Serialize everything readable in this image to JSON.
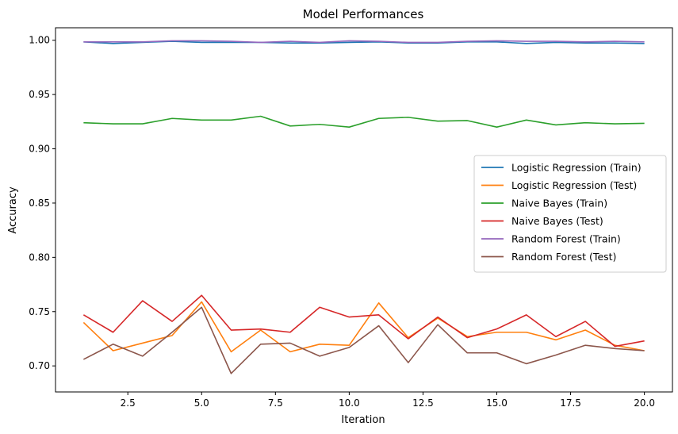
{
  "chart_data": {
    "type": "line",
    "title": "Model Performances",
    "xlabel": "Iteration",
    "ylabel": "Accuracy",
    "xlim": [
      0.05,
      20.95
    ],
    "ylim": [
      0.676,
      1.0115
    ],
    "xticks": [
      2.5,
      5.0,
      7.5,
      10.0,
      12.5,
      15.0,
      17.5,
      20.0
    ],
    "xtick_labels": [
      "2.5",
      "5.0",
      "7.5",
      "10.0",
      "12.5",
      "15.0",
      "17.5",
      "20.0"
    ],
    "yticks": [
      0.7,
      0.75,
      0.8,
      0.85,
      0.9,
      0.95,
      1.0
    ],
    "ytick_labels": [
      "0.70",
      "0.75",
      "0.80",
      "0.85",
      "0.90",
      "0.95",
      "1.00"
    ],
    "grid": false,
    "legend_position": "center-right",
    "x": [
      1,
      2,
      3,
      4,
      5,
      6,
      7,
      8,
      9,
      10,
      11,
      12,
      13,
      14,
      15,
      16,
      17,
      18,
      19,
      20
    ],
    "series": [
      {
        "name": "Logistic Regression (Train)",
        "color": "#1f77b4",
        "values": [
          0.9985,
          0.997,
          0.998,
          0.999,
          0.998,
          0.998,
          0.998,
          0.9975,
          0.9975,
          0.998,
          0.9985,
          0.9975,
          0.9975,
          0.9985,
          0.9985,
          0.997,
          0.998,
          0.9975,
          0.9975,
          0.997
        ]
      },
      {
        "name": "Logistic Regression (Test)",
        "color": "#ff7f0e",
        "values": [
          0.74,
          0.714,
          0.721,
          0.728,
          0.759,
          0.713,
          0.733,
          0.713,
          0.72,
          0.719,
          0.758,
          0.726,
          0.744,
          0.727,
          0.731,
          0.731,
          0.724,
          0.733,
          0.719,
          0.714
        ]
      },
      {
        "name": "Naive Bayes (Train)",
        "color": "#2ca02c",
        "values": [
          0.924,
          0.923,
          0.923,
          0.928,
          0.9265,
          0.9265,
          0.93,
          0.921,
          0.9225,
          0.92,
          0.928,
          0.929,
          0.9255,
          0.926,
          0.92,
          0.9265,
          0.922,
          0.924,
          0.923,
          0.9235
        ]
      },
      {
        "name": "Naive Bayes (Test)",
        "color": "#d62728",
        "values": [
          0.747,
          0.731,
          0.76,
          0.741,
          0.765,
          0.733,
          0.734,
          0.731,
          0.754,
          0.745,
          0.747,
          0.725,
          0.745,
          0.726,
          0.734,
          0.747,
          0.727,
          0.741,
          0.718,
          0.723
        ]
      },
      {
        "name": "Random Forest (Train)",
        "color": "#9467bd",
        "values": [
          0.9985,
          0.9985,
          0.9985,
          0.9995,
          0.9995,
          0.999,
          0.998,
          0.999,
          0.998,
          0.9995,
          0.999,
          0.998,
          0.998,
          0.999,
          0.9995,
          0.999,
          0.999,
          0.9985,
          0.999,
          0.9985
        ]
      },
      {
        "name": "Random Forest (Test)",
        "color": "#8c564b",
        "values": [
          0.706,
          0.72,
          0.709,
          0.731,
          0.754,
          0.693,
          0.72,
          0.721,
          0.709,
          0.717,
          0.737,
          0.703,
          0.738,
          0.712,
          0.712,
          0.702,
          0.71,
          0.719,
          0.716,
          0.714
        ]
      }
    ]
  }
}
